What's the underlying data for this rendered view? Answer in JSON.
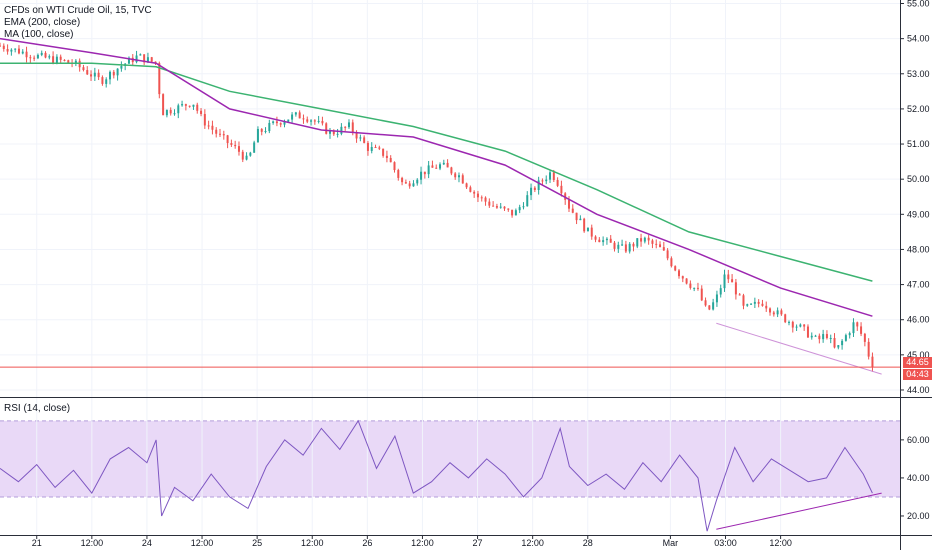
{
  "legend": {
    "title": "CFDs on WTI Crude Oil, 15, TVC",
    "ema": "EMA (200, close)",
    "ma": "MA (100, close)",
    "rsi": "RSI (14, close)"
  },
  "price_tags": {
    "last": "44.65",
    "countdown": "04:43"
  },
  "colors": {
    "up": "#26a69a",
    "down": "#ef5350",
    "ema": "#3cb371",
    "ma": "#9c27b0",
    "rsi": "#7e57c2",
    "rsi_band": "#e9d9f7",
    "divergence": "#ce93d8",
    "last_line": "#ef5350"
  },
  "chart_data": [
    {
      "type": "candlestick",
      "title": "CFDs on WTI Crude Oil, 15, TVC",
      "y_ticks": [
        "44.00",
        "45.00",
        "46.00",
        "47.00",
        "48.00",
        "49.00",
        "50.00",
        "51.00",
        "52.00",
        "53.00",
        "54.00",
        "55.00"
      ],
      "ylim": [
        43.8,
        55.1
      ],
      "x_ticks": [
        "21",
        "12:00",
        "24",
        "12:00",
        "25",
        "12:00",
        "26",
        "12:00",
        "27",
        "12:00",
        "28",
        "Mar",
        "03:00",
        "12:00"
      ],
      "close_path": [
        [
          0,
          53.8
        ],
        [
          4,
          53.5
        ],
        [
          8,
          53.3
        ],
        [
          11,
          52.8
        ],
        [
          13,
          53.2
        ],
        [
          15,
          53.5
        ],
        [
          17,
          53.3
        ],
        [
          17.6,
          51.9
        ],
        [
          19,
          52.0
        ],
        [
          21,
          52.2
        ],
        [
          22,
          51.7
        ],
        [
          24,
          51.2
        ],
        [
          26,
          50.8
        ],
        [
          27,
          50.5
        ],
        [
          28,
          51.3
        ],
        [
          30,
          51.6
        ],
        [
          32,
          51.8
        ],
        [
          33,
          51.8
        ],
        [
          34,
          51.7
        ],
        [
          36,
          51.3
        ],
        [
          38,
          51.5
        ],
        [
          40,
          50.9
        ],
        [
          42,
          50.7
        ],
        [
          44,
          49.8
        ],
        [
          46,
          50.2
        ],
        [
          48,
          50.4
        ],
        [
          50,
          50.1
        ],
        [
          52,
          49.5
        ],
        [
          54,
          49.2
        ],
        [
          56,
          49.0
        ],
        [
          58,
          49.7
        ],
        [
          60,
          50.2
        ],
        [
          61,
          49.8
        ],
        [
          62,
          49.2
        ],
        [
          64,
          48.5
        ],
        [
          66,
          48.2
        ],
        [
          68,
          48.0
        ],
        [
          70,
          48.3
        ],
        [
          72,
          48.0
        ],
        [
          74,
          47.3
        ],
        [
          76,
          46.8
        ],
        [
          77,
          46.2
        ],
        [
          78,
          46.6
        ],
        [
          79,
          47.3
        ],
        [
          80,
          46.9
        ],
        [
          81,
          46.3
        ],
        [
          83,
          46.5
        ],
        [
          85,
          46.1
        ],
        [
          87,
          45.8
        ],
        [
          89,
          45.4
        ],
        [
          90,
          45.6
        ],
        [
          91,
          45.1
        ],
        [
          93,
          45.9
        ],
        [
          94,
          45.5
        ],
        [
          95,
          44.65
        ]
      ],
      "series": [
        {
          "name": "EMA (200, close)",
          "values": [
            [
              0,
              53.3
            ],
            [
              10,
              53.3
            ],
            [
              17,
              53.2
            ],
            [
              25,
              52.5
            ],
            [
              35,
              52.0
            ],
            [
              45,
              51.5
            ],
            [
              55,
              50.8
            ],
            [
              65,
              49.7
            ],
            [
              75,
              48.5
            ],
            [
              85,
              47.8
            ],
            [
              95,
              47.1
            ]
          ]
        },
        {
          "name": "MA (100, close)",
          "values": [
            [
              0,
              54.0
            ],
            [
              10,
              53.6
            ],
            [
              17,
              53.3
            ],
            [
              25,
              52.0
            ],
            [
              35,
              51.4
            ],
            [
              45,
              51.2
            ],
            [
              55,
              50.4
            ],
            [
              65,
              49.0
            ],
            [
              75,
              48.0
            ],
            [
              85,
              46.9
            ],
            [
              95,
              46.1
            ]
          ]
        }
      ],
      "trendline": {
        "from": [
          78,
          45.9
        ],
        "to": [
          96,
          44.45
        ]
      },
      "last_price": 44.65
    },
    {
      "type": "line",
      "title": "RSI (14, close)",
      "y_ticks": [
        "20.00",
        "40.00",
        "60.00"
      ],
      "ylim": [
        10,
        82
      ],
      "band": [
        30,
        70
      ],
      "series": [
        {
          "name": "RSI (14, close)",
          "values": [
            [
              0,
              45
            ],
            [
              2,
              38
            ],
            [
              4,
              47
            ],
            [
              6,
              35
            ],
            [
              8,
              44
            ],
            [
              10,
              32
            ],
            [
              12,
              50
            ],
            [
              14,
              56
            ],
            [
              16,
              48
            ],
            [
              17,
              60
            ],
            [
              17.6,
              20
            ],
            [
              19,
              35
            ],
            [
              21,
              28
            ],
            [
              23,
              42
            ],
            [
              25,
              30
            ],
            [
              27,
              24
            ],
            [
              29,
              46
            ],
            [
              31,
              60
            ],
            [
              33,
              52
            ],
            [
              35,
              66
            ],
            [
              37,
              55
            ],
            [
              39,
              70
            ],
            [
              41,
              45
            ],
            [
              43,
              62
            ],
            [
              45,
              32
            ],
            [
              47,
              38
            ],
            [
              49,
              48
            ],
            [
              51,
              40
            ],
            [
              53,
              50
            ],
            [
              55,
              42
            ],
            [
              57,
              30
            ],
            [
              59,
              40
            ],
            [
              61,
              66
            ],
            [
              62,
              46
            ],
            [
              64,
              36
            ],
            [
              66,
              42
            ],
            [
              68,
              34
            ],
            [
              70,
              48
            ],
            [
              72,
              38
            ],
            [
              74,
              52
            ],
            [
              76,
              40
            ],
            [
              77,
              12
            ],
            [
              78,
              28
            ],
            [
              80,
              56
            ],
            [
              82,
              38
            ],
            [
              84,
              50
            ],
            [
              86,
              44
            ],
            [
              88,
              38
            ],
            [
              90,
              40
            ],
            [
              92,
              56
            ],
            [
              94,
              42
            ],
            [
              95,
              32
            ]
          ]
        }
      ],
      "trendline": {
        "from": [
          78,
          13
        ],
        "to": [
          96,
          32
        ]
      }
    }
  ]
}
